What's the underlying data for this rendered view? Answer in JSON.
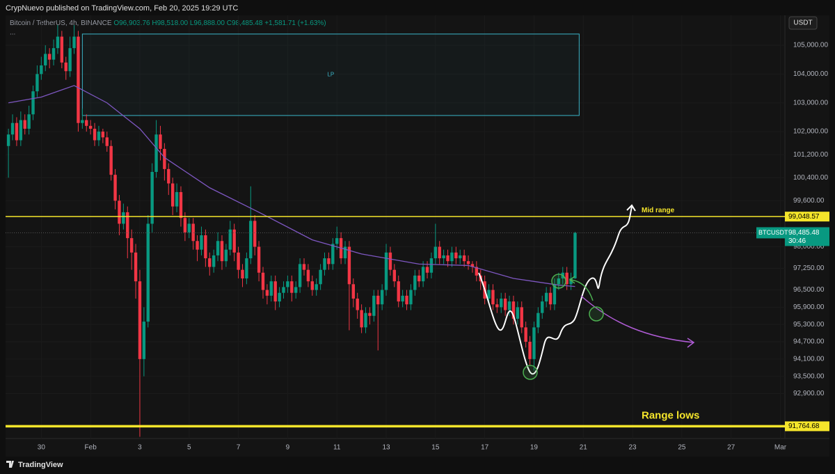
{
  "header": "CrypNuevo published on TradingView.com, Feb 20, 2025 19:29 UTC",
  "footer": "TradingView",
  "chart_data": {
    "type": "candlestick",
    "symbol_title": "Bitcoin / TetherUS, 4h, BINANCE",
    "ohlc_legend": [
      "O96,903.76",
      "H98,518.00",
      "L96,888.00",
      "C98,485.48",
      "+1,581.71 (+1.63%)"
    ],
    "more": "...",
    "currency": "USDT",
    "up_color": "#089981",
    "down_color": "#f23645",
    "grid": true,
    "xlim": [
      -0.7,
      189.1
    ],
    "xticks": [
      {
        "value": 8,
        "label": "30"
      },
      {
        "value": 20,
        "label": "Feb"
      },
      {
        "value": 32,
        "label": "3"
      },
      {
        "value": 44,
        "label": "5"
      },
      {
        "value": 56,
        "label": "7"
      },
      {
        "value": 68,
        "label": "9"
      },
      {
        "value": 80,
        "label": "11"
      },
      {
        "value": 92,
        "label": "13"
      },
      {
        "value": 104,
        "label": "15"
      },
      {
        "value": 116,
        "label": "17"
      },
      {
        "value": 128,
        "label": "19"
      },
      {
        "value": 140,
        "label": "21"
      },
      {
        "value": 152,
        "label": "23"
      },
      {
        "value": 164,
        "label": "25"
      },
      {
        "value": 176,
        "label": "27"
      },
      {
        "value": 188,
        "label": "Mar"
      }
    ],
    "ylim": [
      91340,
      106040
    ],
    "yticks": [
      {
        "value": 105000,
        "label": "105,000.00"
      },
      {
        "value": 104000,
        "label": "104,000.00"
      },
      {
        "value": 103000,
        "label": "103,000.00"
      },
      {
        "value": 102000,
        "label": "102,000.00"
      },
      {
        "value": 101200,
        "label": "101,200.00"
      },
      {
        "value": 100400,
        "label": "100,400.00"
      },
      {
        "value": 99600,
        "label": "99,600.00"
      },
      {
        "value": 98000,
        "label": "98,000.00"
      },
      {
        "value": 97250,
        "label": "97,250.00"
      },
      {
        "value": 96500,
        "label": "96,500.00"
      },
      {
        "value": 95900,
        "label": "95,900.00"
      },
      {
        "value": 95300,
        "label": "95,300.00"
      },
      {
        "value": 94700,
        "label": "94,700.00"
      },
      {
        "value": 94100,
        "label": "94,100.00"
      },
      {
        "value": 93500,
        "label": "93,500.00"
      },
      {
        "value": 92900,
        "label": "92,900.00"
      }
    ],
    "series": [
      {
        "name": "BTCUSDT",
        "last_label": "98,485.48",
        "countdown": "30:46",
        "open": [
          101500,
          101900,
          102300,
          101700,
          102400,
          102100,
          102600,
          103400,
          104000,
          104300,
          104700,
          104500,
          104900,
          105300,
          104400,
          104100,
          104900,
          105300,
          102300,
          102400,
          102200,
          102100,
          101700,
          102000,
          101800,
          101500,
          100500,
          99600,
          98800,
          99200,
          98300,
          97800,
          96800,
          94100,
          95400,
          98800,
          100600,
          101900,
          101400,
          100700,
          100200,
          99400,
          99900,
          99000,
          98500,
          98800,
          98200,
          97900,
          98400,
          97600,
          97300,
          97700,
          98200,
          97500,
          97900,
          98600,
          97800,
          97200,
          96900,
          97600,
          98900,
          98000,
          97100,
          96500,
          96300,
          96800,
          96100,
          96400,
          96600,
          96800,
          96400,
          96600,
          97400,
          97200,
          96800,
          96500,
          96700,
          97200,
          97600,
          97400,
          98100,
          98300,
          97600,
          98000,
          96700,
          96200,
          95800,
          95200,
          95700,
          95600,
          96300,
          96000,
          96500,
          97800,
          97200,
          96800,
          96100,
          96300,
          96000,
          96500,
          97000,
          96800,
          97300,
          97100,
          97600,
          98000,
          97600,
          97700,
          97500,
          97800,
          97600,
          97700,
          97500,
          97400,
          97300,
          97000,
          96800,
          96200,
          96500,
          96000,
          95900,
          96200,
          95800,
          96100,
          95500,
          95900,
          95200,
          94700,
          94100,
          95200,
          95700,
          96100,
          96400,
          96000,
          96700,
          96900,
          97100,
          96700,
          96903.76
        ],
        "high": [
          102100,
          102600,
          102500,
          102700,
          102600,
          102900,
          103600,
          104300,
          104600,
          105000,
          104900,
          105200,
          105700,
          105500,
          104600,
          105300,
          105700,
          105500,
          102800,
          102600,
          102400,
          102300,
          102200,
          102100,
          102000,
          101700,
          100700,
          99800,
          99500,
          99400,
          98600,
          98100,
          97200,
          95900,
          99100,
          100900,
          102400,
          102200,
          101600,
          100900,
          100400,
          100200,
          100100,
          99200,
          99000,
          99000,
          98400,
          98700,
          98600,
          97800,
          97900,
          98500,
          98400,
          98100,
          98900,
          98800,
          98000,
          97400,
          97800,
          100100,
          99100,
          98200,
          97300,
          96700,
          97000,
          97000,
          96600,
          96800,
          97000,
          97000,
          96800,
          97600,
          97600,
          97400,
          97000,
          96900,
          97400,
          97800,
          97800,
          98300,
          98700,
          98500,
          98200,
          98200,
          96900,
          96400,
          96000,
          95900,
          95900,
          96500,
          96500,
          96700,
          98100,
          98000,
          97400,
          97000,
          96500,
          96500,
          96700,
          97200,
          97200,
          97500,
          97500,
          97800,
          98800,
          98200,
          97900,
          97900,
          98000,
          98000,
          97900,
          97900,
          97700,
          97500,
          97500,
          97200,
          97000,
          96700,
          96700,
          96200,
          96400,
          96400,
          96300,
          96300,
          96100,
          96100,
          95400,
          94900,
          95400,
          95900,
          96300,
          96600,
          96600,
          96900,
          97100,
          97300,
          97300,
          97100,
          98518
        ],
        "low": [
          100400,
          101700,
          101500,
          101500,
          101900,
          101900,
          102400,
          103200,
          103800,
          104100,
          104200,
          104300,
          104700,
          104200,
          103800,
          103900,
          104700,
          102000,
          102100,
          102000,
          101900,
          101500,
          101500,
          101600,
          101300,
          100300,
          99300,
          98400,
          98600,
          97600,
          97200,
          96200,
          91400,
          93500,
          95200,
          98500,
          100400,
          101000,
          100300,
          99800,
          99100,
          99200,
          98700,
          98200,
          98300,
          97900,
          97500,
          97700,
          97300,
          97000,
          97100,
          97500,
          97200,
          97300,
          97700,
          97500,
          96900,
          96600,
          96700,
          97400,
          97700,
          96800,
          96200,
          96000,
          96100,
          95800,
          95900,
          96200,
          96400,
          96100,
          96200,
          96400,
          97000,
          96600,
          96300,
          96300,
          96500,
          97000,
          97200,
          97200,
          97900,
          97400,
          97400,
          95100,
          95900,
          95500,
          95000,
          95000,
          95300,
          95400,
          94400,
          95800,
          96300,
          97000,
          96600,
          95900,
          95900,
          95800,
          95800,
          96300,
          96600,
          96600,
          96900,
          96900,
          97400,
          97400,
          97400,
          97300,
          97300,
          97400,
          97400,
          97300,
          97200,
          97100,
          96800,
          96500,
          96000,
          96000,
          95800,
          95700,
          95700,
          95600,
          95600,
          95300,
          95300,
          95000,
          94500,
          93900,
          93700,
          95000,
          95500,
          95900,
          95800,
          95800,
          96500,
          96700,
          96500,
          96500,
          96888
        ],
        "close": [
          101900,
          102300,
          101700,
          102400,
          102100,
          102600,
          103400,
          104000,
          104300,
          104700,
          104500,
          104900,
          105300,
          104400,
          104100,
          104900,
          105300,
          102300,
          102400,
          102200,
          102100,
          101700,
          102000,
          101800,
          101500,
          100500,
          99600,
          98800,
          99200,
          98300,
          97800,
          96800,
          94100,
          95400,
          98800,
          100600,
          101900,
          101400,
          100700,
          100200,
          99400,
          99900,
          99000,
          98500,
          98800,
          98200,
          97900,
          98400,
          97600,
          97300,
          97700,
          98200,
          97500,
          97900,
          98600,
          97800,
          97200,
          96900,
          97600,
          98900,
          98000,
          97100,
          96500,
          96300,
          96800,
          96100,
          96400,
          96600,
          96800,
          96400,
          96600,
          97400,
          97200,
          96800,
          96500,
          96700,
          97200,
          97600,
          97400,
          98100,
          98300,
          97600,
          98000,
          96700,
          96200,
          95800,
          95200,
          95700,
          95600,
          96300,
          96000,
          96500,
          97800,
          97200,
          96800,
          96100,
          96300,
          96000,
          96500,
          97000,
          96800,
          97300,
          97100,
          97600,
          98000,
          97600,
          97700,
          97500,
          97800,
          97600,
          97700,
          97500,
          97400,
          97300,
          97000,
          96800,
          96200,
          96500,
          96000,
          95900,
          96200,
          95800,
          96100,
          95500,
          95900,
          95200,
          94700,
          94100,
          95200,
          95700,
          96100,
          96400,
          96000,
          96700,
          96900,
          97100,
          96700,
          96900,
          98485.48
        ]
      },
      {
        "type": "line",
        "color": "#7e57c2",
        "x": [
          0,
          8,
          16,
          24,
          32,
          38,
          49,
          61,
          74,
          86,
          100,
          112,
          123,
          134,
          138
        ],
        "values": [
          103000,
          103200,
          103600,
          103000,
          102100,
          101100,
          100050,
          99200,
          98240,
          97750,
          97400,
          97350,
          96900,
          96670,
          96620
        ]
      }
    ],
    "zones": [
      {
        "label": "LP",
        "top": 105390,
        "bottom": 102560,
        "x0": 18,
        "x1": 139,
        "color": "#3bb5c9"
      }
    ],
    "hlines": [
      {
        "value": 99048.57,
        "label": "99,048.57",
        "text": "Mid range",
        "color": "#f5e52b"
      },
      {
        "value": 91764.68,
        "label": "91,764.68",
        "text": "Range lows",
        "color": "#f5e52b"
      }
    ]
  }
}
